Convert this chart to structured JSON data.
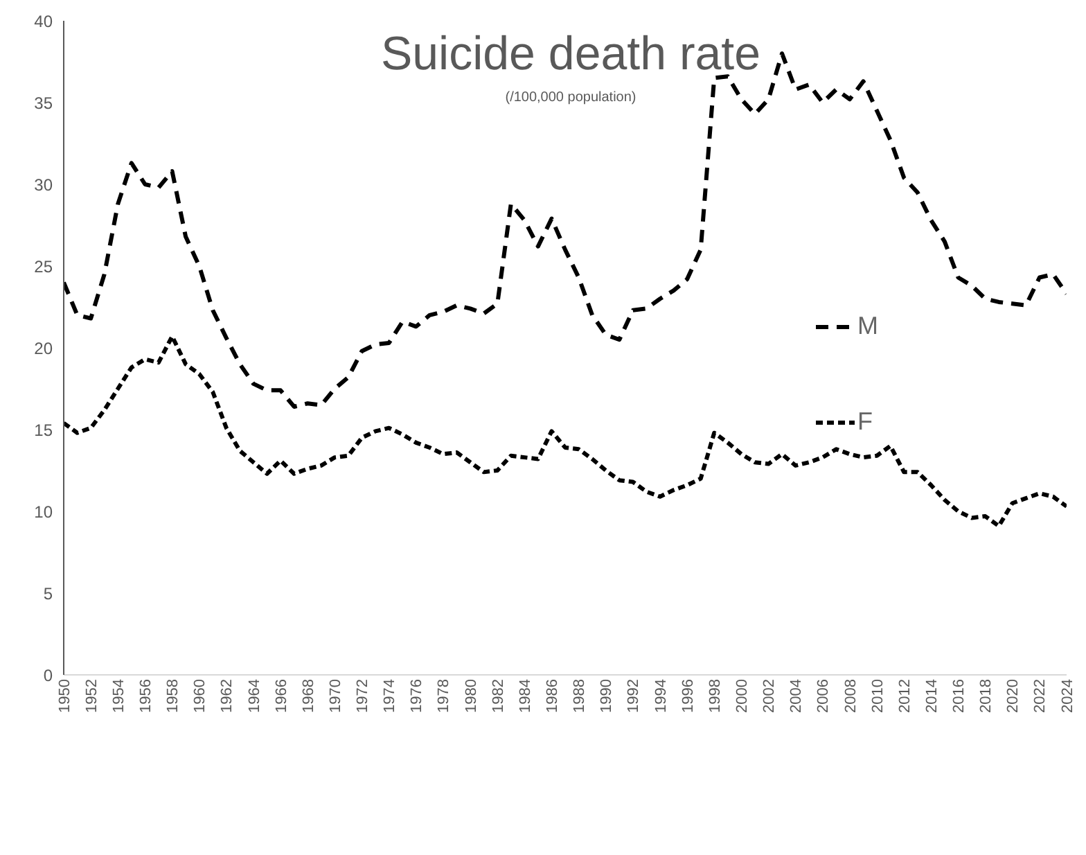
{
  "chart_data": {
    "type": "line",
    "title": "Suicide death rate",
    "subtitle": "(/100,000 population)",
    "x": [
      1950,
      1951,
      1952,
      1953,
      1954,
      1955,
      1956,
      1957,
      1958,
      1959,
      1960,
      1961,
      1962,
      1963,
      1964,
      1965,
      1966,
      1967,
      1968,
      1969,
      1970,
      1971,
      1972,
      1973,
      1974,
      1975,
      1976,
      1977,
      1978,
      1979,
      1980,
      1981,
      1982,
      1983,
      1984,
      1985,
      1986,
      1987,
      1988,
      1989,
      1990,
      1991,
      1992,
      1993,
      1994,
      1995,
      1996,
      1997,
      1998,
      1999,
      2000,
      2001,
      2002,
      2003,
      2004,
      2005,
      2006,
      2007,
      2008,
      2009,
      2010,
      2011,
      2012,
      2013,
      2014,
      2015,
      2016,
      2017,
      2018,
      2019,
      2020,
      2021,
      2022,
      2023,
      2024
    ],
    "series": [
      {
        "name": "M",
        "color": "#000000",
        "values": [
          24.0,
          22.0,
          21.8,
          24.5,
          28.8,
          31.3,
          30.0,
          29.8,
          30.8,
          26.8,
          25.0,
          22.3,
          20.6,
          19.0,
          17.8,
          17.4,
          17.4,
          16.4,
          16.6,
          16.5,
          17.5,
          18.2,
          19.8,
          20.2,
          20.3,
          21.6,
          21.3,
          22.0,
          22.2,
          22.6,
          22.4,
          22.1,
          22.7,
          28.8,
          27.8,
          26.2,
          27.9,
          26.0,
          24.3,
          22.0,
          20.8,
          20.5,
          22.3,
          22.4,
          23.0,
          23.5,
          24.2,
          26.0,
          36.5,
          36.6,
          35.2,
          34.3,
          35.2,
          38.0,
          35.8,
          36.1,
          35.0,
          35.8,
          35.2,
          36.3,
          34.5,
          32.7,
          30.4,
          29.5,
          27.8,
          26.5,
          24.3,
          23.8,
          23.0,
          22.8,
          22.7,
          22.6,
          24.3,
          24.5,
          23.3
        ]
      },
      {
        "name": "F",
        "color": "#000000",
        "values": [
          15.4,
          14.8,
          15.1,
          16.2,
          17.5,
          18.8,
          19.3,
          19.1,
          20.7,
          19.0,
          18.4,
          17.3,
          15.1,
          13.7,
          13.0,
          12.3,
          13.1,
          12.3,
          12.6,
          12.8,
          13.3,
          13.4,
          14.5,
          14.9,
          15.1,
          14.7,
          14.2,
          13.9,
          13.5,
          13.6,
          13.0,
          12.4,
          12.5,
          13.4,
          13.3,
          13.2,
          14.9,
          13.9,
          13.8,
          13.2,
          12.5,
          11.9,
          11.8,
          11.2,
          10.9,
          11.3,
          11.6,
          12.0,
          14.8,
          14.2,
          13.5,
          13.0,
          12.9,
          13.5,
          12.8,
          13.0,
          13.3,
          13.8,
          13.5,
          13.3,
          13.4,
          14.0,
          12.4,
          12.4,
          11.6,
          10.7,
          10.0,
          9.6,
          9.7,
          9.1,
          10.5,
          10.8,
          11.1,
          10.9,
          10.3
        ]
      }
    ],
    "xlim": [
      1950,
      2024
    ],
    "xticks": [
      1950,
      1952,
      1954,
      1956,
      1958,
      1960,
      1962,
      1964,
      1966,
      1968,
      1970,
      1972,
      1974,
      1976,
      1978,
      1980,
      1982,
      1984,
      1986,
      1988,
      1990,
      1992,
      1994,
      1996,
      1998,
      2000,
      2002,
      2004,
      2006,
      2008,
      2010,
      2012,
      2014,
      2016,
      2018,
      2020,
      2022,
      2024
    ],
    "ylim": [
      0,
      40
    ],
    "yticks": [
      0,
      5,
      10,
      15,
      20,
      25,
      30,
      35,
      40
    ],
    "grid": false,
    "legend": "right",
    "marker": "none",
    "line_style": "dashed"
  }
}
